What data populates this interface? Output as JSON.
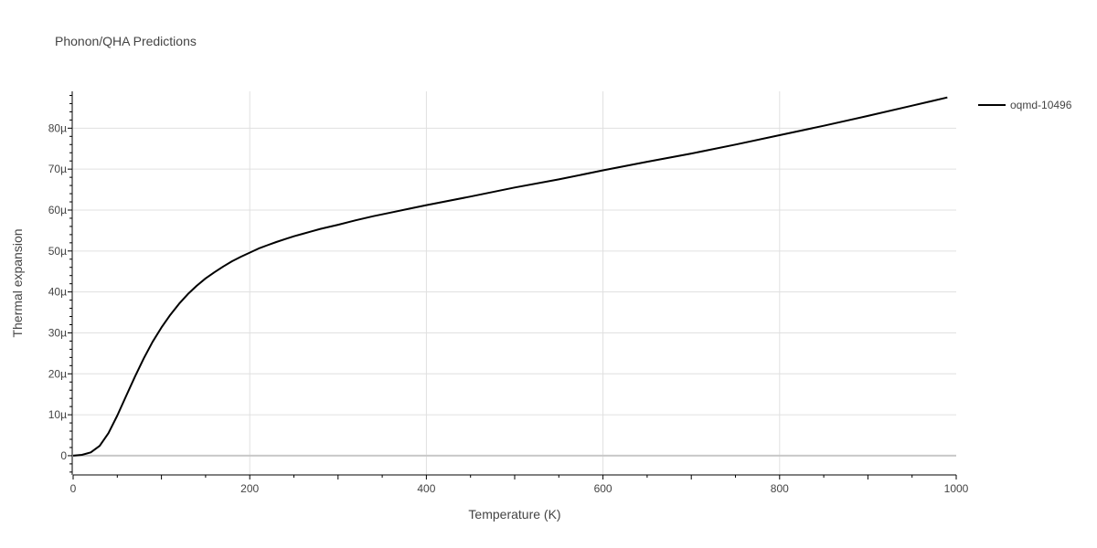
{
  "chart_data": {
    "type": "line",
    "title": "Phonon/QHA Predictions",
    "xlabel": "Temperature (K)",
    "ylabel": "Thermal expansion",
    "xlim": [
      0,
      1000
    ],
    "ylim": [
      -4.7,
      89
    ],
    "x_ticks": [
      0,
      200,
      400,
      600,
      800,
      1000
    ],
    "x_tick_labels": [
      "0",
      "200",
      "400",
      "600",
      "800",
      "1000"
    ],
    "y_ticks": [
      0,
      10,
      20,
      30,
      40,
      50,
      60,
      70,
      80
    ],
    "y_tick_labels": [
      "0",
      "10µ",
      "20µ",
      "30µ",
      "40µ",
      "50µ",
      "60µ",
      "70µ",
      "80µ"
    ],
    "grid": true,
    "legend_position": "top-right",
    "series": [
      {
        "name": "oqmd-10496",
        "color": "#000000",
        "x": [
          0,
          10,
          20,
          30,
          40,
          50,
          60,
          70,
          80,
          90,
          100,
          110,
          120,
          130,
          140,
          150,
          160,
          170,
          180,
          190,
          200,
          210,
          220,
          230,
          240,
          250,
          260,
          270,
          280,
          290,
          300,
          320,
          340,
          360,
          380,
          400,
          450,
          500,
          550,
          600,
          650,
          700,
          750,
          800,
          850,
          900,
          950,
          990
        ],
        "y": [
          0,
          0.2,
          0.8,
          2.4,
          5.5,
          9.8,
          14.6,
          19.3,
          23.8,
          27.8,
          31.3,
          34.4,
          37.1,
          39.5,
          41.5,
          43.3,
          44.8,
          46.2,
          47.5,
          48.6,
          49.6,
          50.6,
          51.4,
          52.2,
          52.9,
          53.6,
          54.2,
          54.8,
          55.4,
          55.9,
          56.4,
          57.5,
          58.5,
          59.4,
          60.3,
          61.2,
          63.3,
          65.5,
          67.5,
          69.7,
          71.8,
          73.8,
          76.0,
          78.3,
          80.6,
          83.0,
          85.5,
          87.5
        ]
      }
    ]
  }
}
